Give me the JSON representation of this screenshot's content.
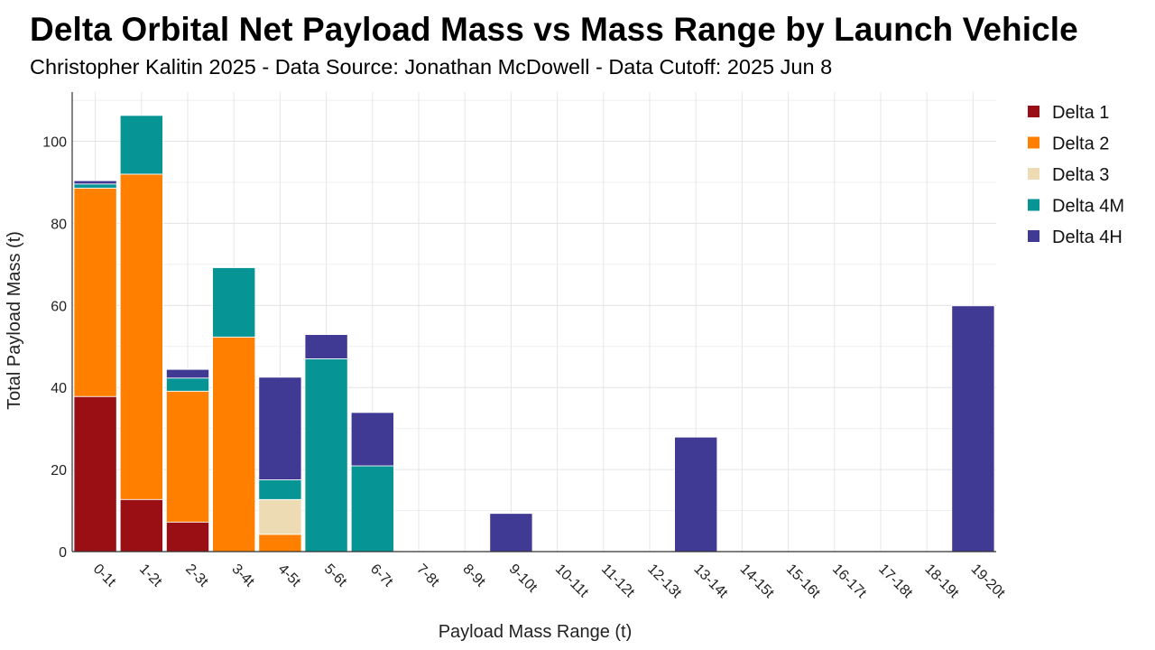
{
  "chart_data": {
    "type": "bar",
    "stacked": true,
    "title": "Delta Orbital Net Payload Mass vs Mass Range by Launch Vehicle",
    "subtitle": "Christopher Kalitin 2025 - Data Source: Jonathan McDowell - Data Cutoff: 2025 Jun 8",
    "xlabel": "Payload Mass Range (t)",
    "ylabel": "Total Payload Mass (t)",
    "ylim": [
      0,
      112
    ],
    "yticks": [
      0,
      20,
      40,
      60,
      80,
      100
    ],
    "grid": true,
    "legend_position": "right",
    "categories": [
      "0-1t",
      "1-2t",
      "2-3t",
      "3-4t",
      "4-5t",
      "5-6t",
      "6-7t",
      "7-8t",
      "8-9t",
      "9-10t",
      "10-11t",
      "11-12t",
      "12-13t",
      "13-14t",
      "14-15t",
      "15-16t",
      "16-17t",
      "17-18t",
      "18-19t",
      "19-20t"
    ],
    "series": [
      {
        "name": "Delta 1",
        "color": "#990f14",
        "values": [
          37.8,
          12.7,
          7.2,
          0,
          0,
          0,
          0,
          0,
          0,
          0,
          0,
          0,
          0,
          0,
          0,
          0,
          0,
          0,
          0,
          0
        ]
      },
      {
        "name": "Delta 2",
        "color": "#ff8000",
        "values": [
          50.8,
          79.3,
          31.9,
          52.3,
          4.2,
          0,
          0,
          0,
          0,
          0,
          0,
          0,
          0,
          0,
          0,
          0,
          0,
          0,
          0,
          0
        ]
      },
      {
        "name": "Delta 3",
        "color": "#eddcb3",
        "values": [
          0,
          0,
          0,
          0,
          8.5,
          0,
          0,
          0,
          0,
          0,
          0,
          0,
          0,
          0,
          0,
          0,
          0,
          0,
          0,
          0
        ]
      },
      {
        "name": "Delta 4M",
        "color": "#069494",
        "values": [
          1.0,
          14.3,
          3.2,
          16.9,
          4.8,
          47.0,
          20.9,
          0,
          0,
          0,
          0,
          0,
          0,
          0,
          0,
          0,
          0,
          0,
          0,
          0
        ]
      },
      {
        "name": "Delta 4H",
        "color": "#413a94",
        "values": [
          0.8,
          0,
          2.1,
          0,
          25.0,
          5.9,
          13.0,
          0,
          0,
          9.3,
          0,
          0,
          0,
          27.9,
          0,
          0,
          0,
          0,
          0,
          59.9
        ]
      }
    ]
  }
}
